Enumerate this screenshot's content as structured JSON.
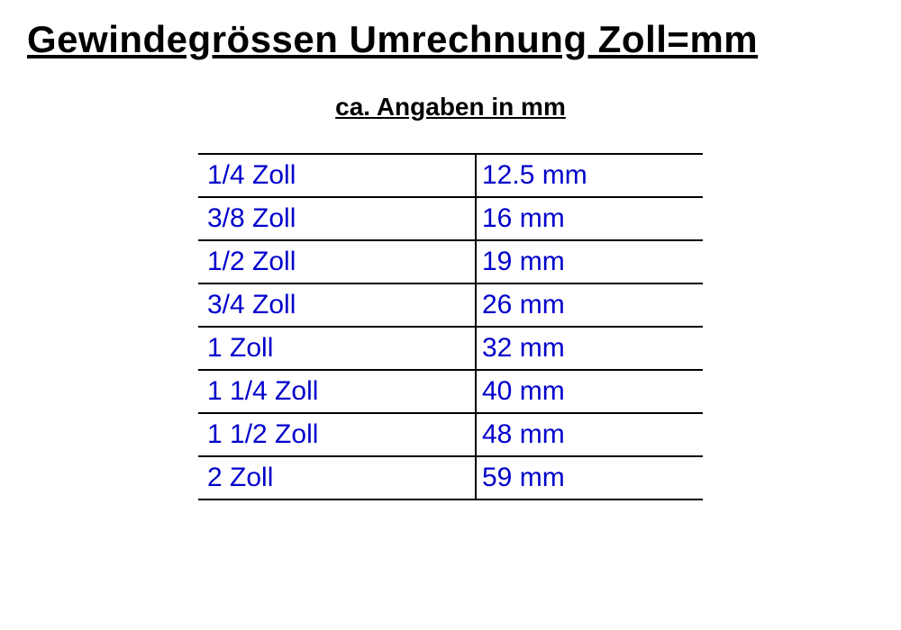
{
  "title": "Gewindegrössen Umrechnung Zoll=mm",
  "subtitle": "ca. Angaben in mm",
  "table": {
    "type": "table",
    "columns": [
      "zoll",
      "mm"
    ],
    "background_color": "#ffffff",
    "border_color": "#000000",
    "text_color": "#0000cc",
    "title_color": "#000000",
    "title_fontsize": 42,
    "subtitle_fontsize": 28,
    "cell_fontsize": 30,
    "rows": [
      {
        "zoll": "1/4 Zoll",
        "mm": "12.5 mm"
      },
      {
        "zoll": "3/8 Zoll",
        "mm": "16 mm"
      },
      {
        "zoll": "1/2 Zoll",
        "mm": "19 mm"
      },
      {
        "zoll": "3/4 Zoll",
        "mm": "26 mm"
      },
      {
        "zoll": "1 Zoll",
        "mm": "32 mm"
      },
      {
        "zoll": "1 1/4 Zoll",
        "mm": "40 mm"
      },
      {
        "zoll": "1 1/2 Zoll",
        "mm": "48 mm"
      },
      {
        "zoll": "2 Zoll",
        "mm": "59 mm"
      }
    ]
  }
}
